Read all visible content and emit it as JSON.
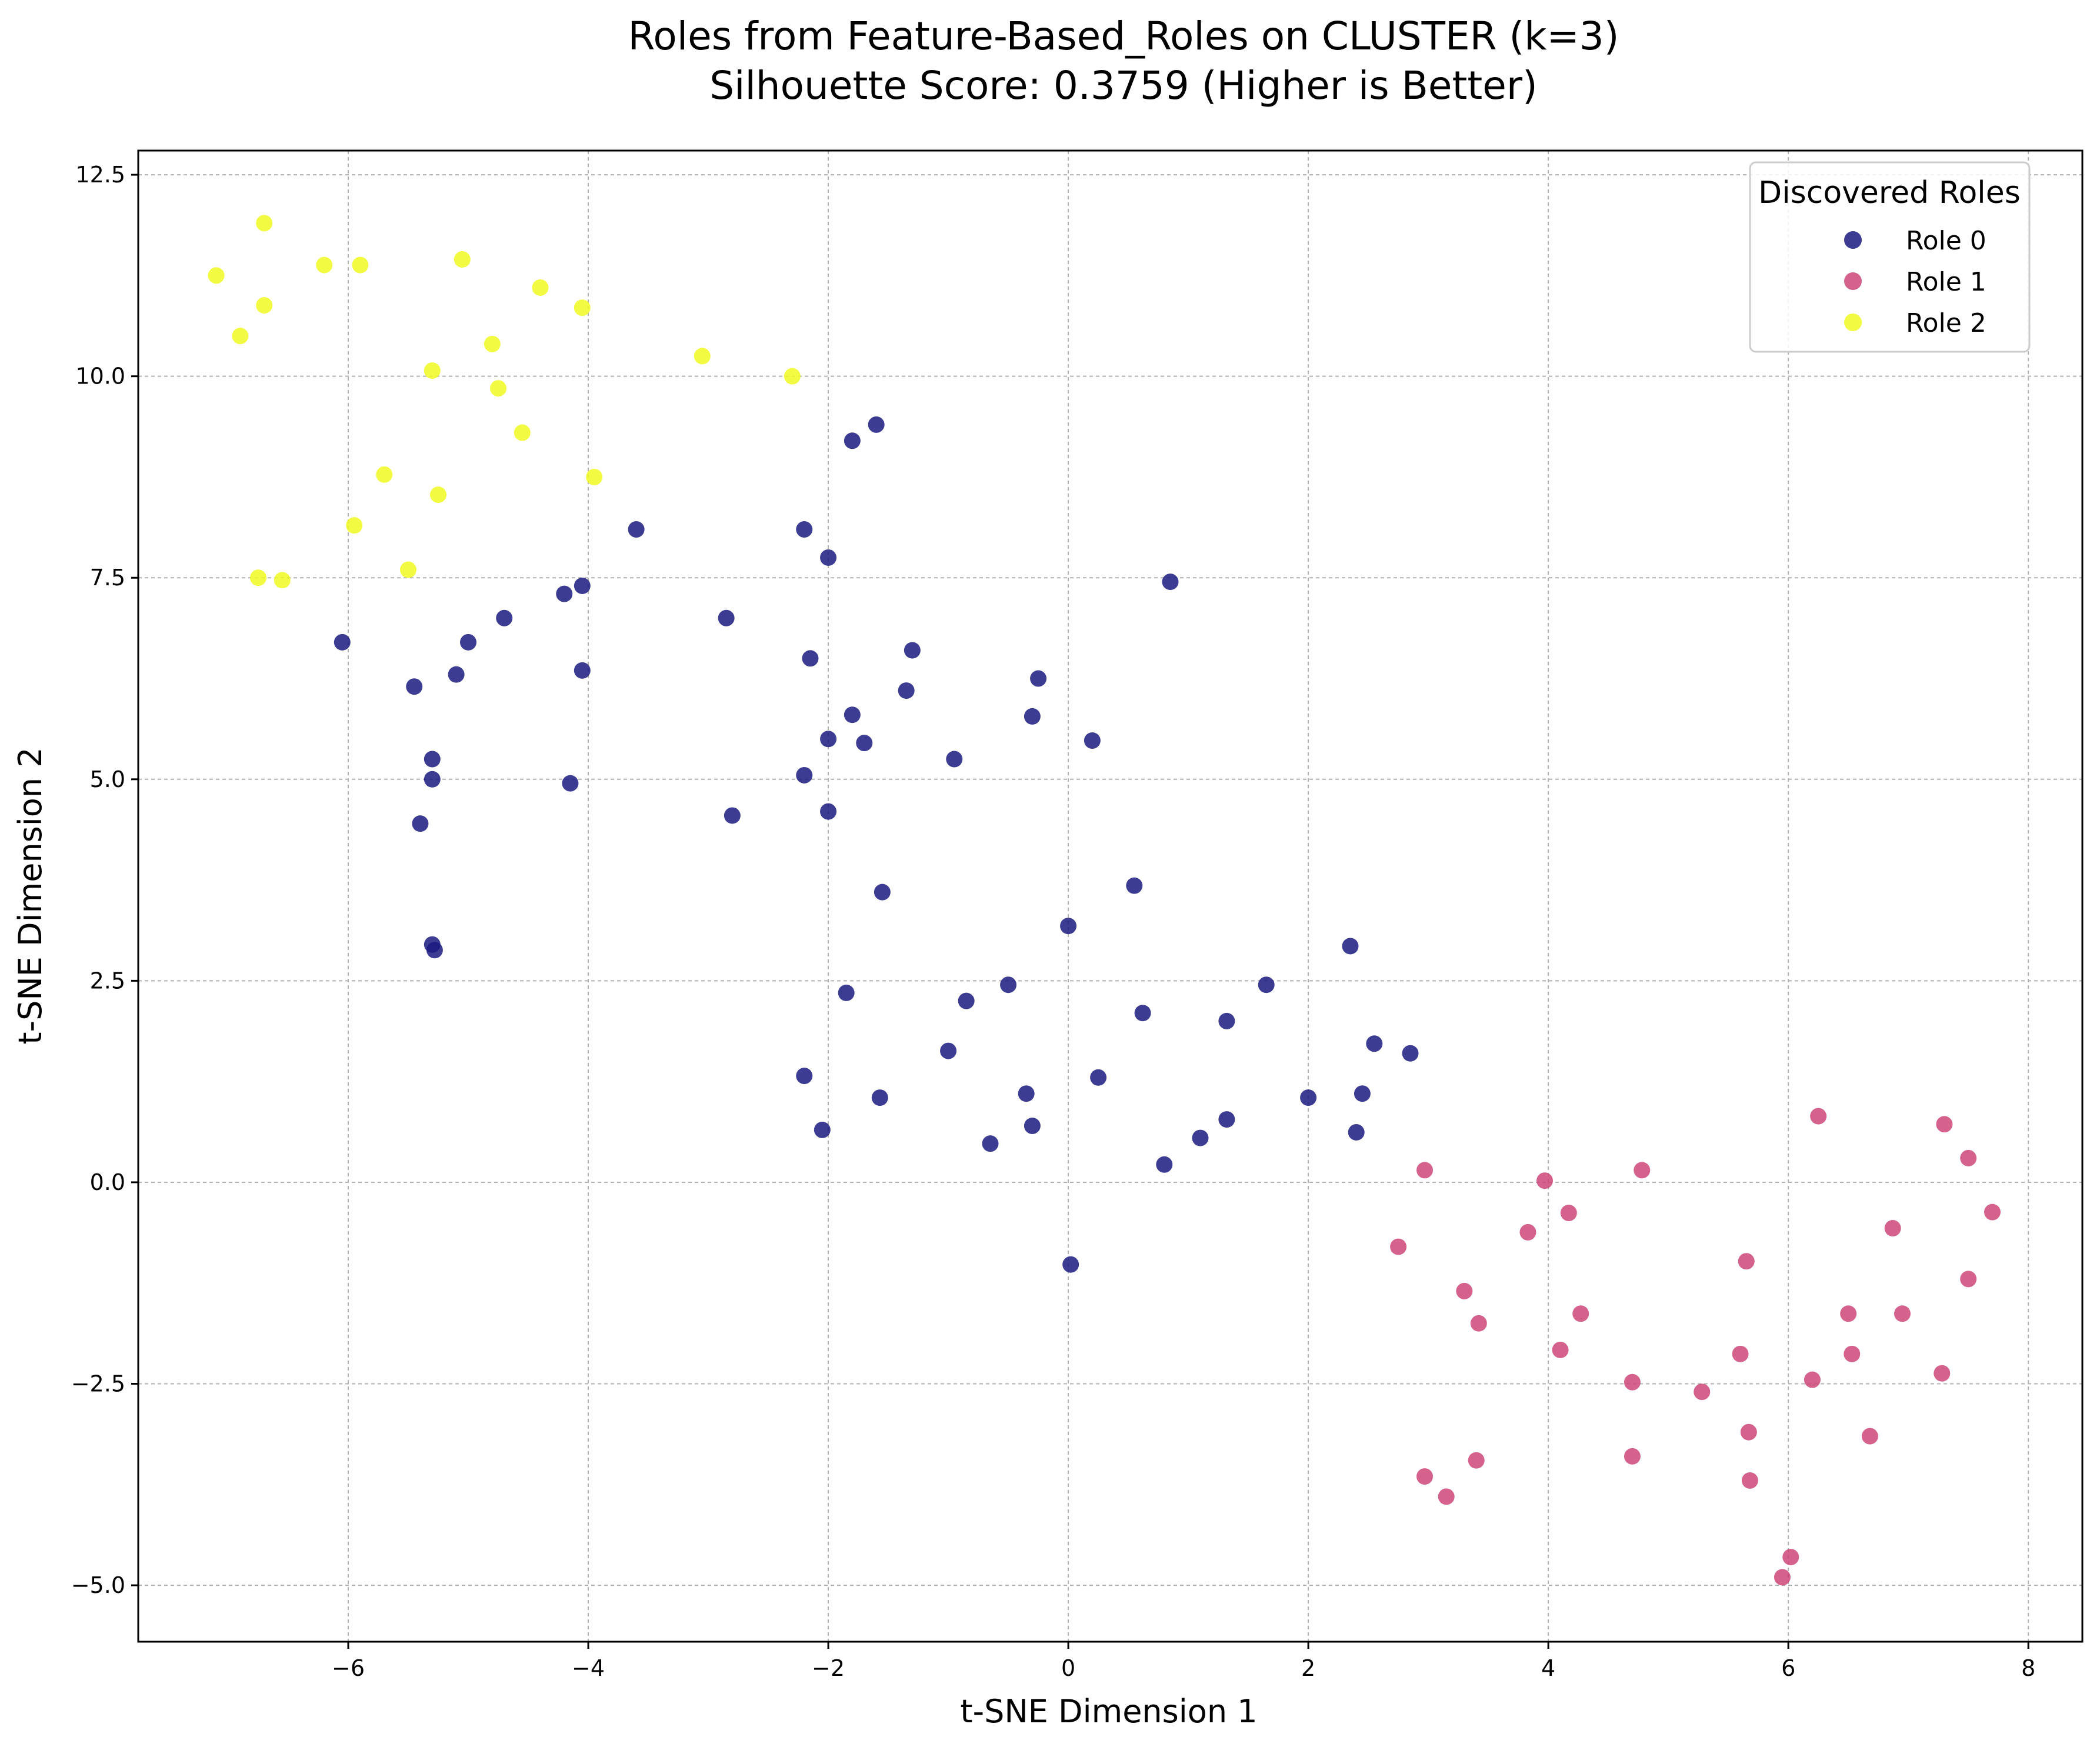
{
  "chart_data": {
    "type": "scatter",
    "title": "Roles from Feature-Based_Roles on CLUSTER (k=3)",
    "subtitle": "Silhouette Score: 0.3759 (Higher is Better)",
    "xlabel": "t-SNE Dimension 1",
    "ylabel": "t-SNE Dimension 2",
    "xlim": [
      -7.75,
      8.45
    ],
    "ylim": [
      -5.7,
      12.8
    ],
    "xticks": [
      -6,
      -4,
      -2,
      0,
      2,
      4,
      6,
      8
    ],
    "yticks": [
      -5.0,
      -2.5,
      0.0,
      2.5,
      5.0,
      7.5,
      10.0,
      12.5
    ],
    "xtick_labels": [
      "−6",
      "−4",
      "−2",
      "0",
      "2",
      "4",
      "6",
      "8"
    ],
    "ytick_labels": [
      "−5.0",
      "−2.5",
      "0.0",
      "2.5",
      "5.0",
      "7.5",
      "10.0",
      "12.5"
    ],
    "grid": true,
    "legend": {
      "title": "Discovered Roles",
      "placement": "top-right"
    },
    "series": [
      {
        "name": "Role 0",
        "color": "#1a1a80",
        "points": [
          [
            -1.6,
            9.4
          ],
          [
            -1.8,
            9.2
          ],
          [
            -3.6,
            8.1
          ],
          [
            -2.2,
            8.1
          ],
          [
            -2.0,
            7.75
          ],
          [
            0.85,
            7.45
          ],
          [
            -4.05,
            7.4
          ],
          [
            -4.2,
            7.3
          ],
          [
            -2.85,
            7.0
          ],
          [
            -4.7,
            7.0
          ],
          [
            -6.05,
            6.7
          ],
          [
            -5.0,
            6.7
          ],
          [
            -1.3,
            6.6
          ],
          [
            -2.15,
            6.5
          ],
          [
            -4.05,
            6.35
          ],
          [
            -5.1,
            6.3
          ],
          [
            -0.25,
            6.25
          ],
          [
            -5.45,
            6.15
          ],
          [
            -1.35,
            6.1
          ],
          [
            -1.8,
            5.8
          ],
          [
            -0.3,
            5.78
          ],
          [
            -2.0,
            5.5
          ],
          [
            0.2,
            5.48
          ],
          [
            -1.7,
            5.45
          ],
          [
            -5.3,
            5.25
          ],
          [
            -0.95,
            5.25
          ],
          [
            -2.2,
            5.05
          ],
          [
            -5.3,
            5.0
          ],
          [
            -4.15,
            4.95
          ],
          [
            -2.0,
            4.6
          ],
          [
            -2.8,
            4.55
          ],
          [
            -5.4,
            4.45
          ],
          [
            -1.55,
            3.6
          ],
          [
            0.55,
            3.68
          ],
          [
            0.0,
            3.18
          ],
          [
            -5.3,
            2.95
          ],
          [
            -5.28,
            2.88
          ],
          [
            2.35,
            2.93
          ],
          [
            -0.5,
            2.45
          ],
          [
            1.65,
            2.45
          ],
          [
            -1.85,
            2.35
          ],
          [
            -0.85,
            2.25
          ],
          [
            0.62,
            2.1
          ],
          [
            1.32,
            2.0
          ],
          [
            2.55,
            1.72
          ],
          [
            2.85,
            1.6
          ],
          [
            -1.0,
            1.63
          ],
          [
            -2.2,
            1.32
          ],
          [
            0.25,
            1.3
          ],
          [
            -0.35,
            1.1
          ],
          [
            2.45,
            1.1
          ],
          [
            -1.57,
            1.05
          ],
          [
            2.0,
            1.05
          ],
          [
            1.32,
            0.78
          ],
          [
            -0.3,
            0.7
          ],
          [
            -2.05,
            0.65
          ],
          [
            2.4,
            0.62
          ],
          [
            1.1,
            0.55
          ],
          [
            -0.65,
            0.48
          ],
          [
            0.8,
            0.22
          ],
          [
            0.02,
            -1.02
          ]
        ]
      },
      {
        "name": "Role 1",
        "color": "#cc4778",
        "points": [
          [
            6.25,
            0.82
          ],
          [
            7.3,
            0.72
          ],
          [
            7.5,
            0.3
          ],
          [
            2.97,
            0.15
          ],
          [
            4.78,
            0.15
          ],
          [
            3.97,
            0.02
          ],
          [
            4.17,
            -0.38
          ],
          [
            7.7,
            -0.37
          ],
          [
            6.87,
            -0.57
          ],
          [
            3.83,
            -0.62
          ],
          [
            2.75,
            -0.8
          ],
          [
            5.65,
            -0.98
          ],
          [
            7.5,
            -1.2
          ],
          [
            3.3,
            -1.35
          ],
          [
            4.27,
            -1.63
          ],
          [
            6.5,
            -1.63
          ],
          [
            6.95,
            -1.63
          ],
          [
            3.42,
            -1.75
          ],
          [
            4.1,
            -2.08
          ],
          [
            5.6,
            -2.13
          ],
          [
            6.53,
            -2.13
          ],
          [
            7.28,
            -2.37
          ],
          [
            6.2,
            -2.45
          ],
          [
            4.7,
            -2.48
          ],
          [
            5.28,
            -2.6
          ],
          [
            5.67,
            -3.1
          ],
          [
            6.68,
            -3.15
          ],
          [
            4.7,
            -3.4
          ],
          [
            3.4,
            -3.45
          ],
          [
            2.97,
            -3.65
          ],
          [
            5.68,
            -3.7
          ],
          [
            3.15,
            -3.9
          ],
          [
            6.02,
            -4.65
          ],
          [
            5.95,
            -4.9
          ]
        ]
      },
      {
        "name": "Role 2",
        "color": "#f0f921",
        "points": [
          [
            -6.7,
            11.9
          ],
          [
            -5.05,
            11.45
          ],
          [
            -6.2,
            11.38
          ],
          [
            -5.9,
            11.38
          ],
          [
            -7.1,
            11.25
          ],
          [
            -4.4,
            11.1
          ],
          [
            -6.7,
            10.88
          ],
          [
            -4.05,
            10.85
          ],
          [
            -6.9,
            10.5
          ],
          [
            -4.8,
            10.4
          ],
          [
            -3.05,
            10.25
          ],
          [
            -5.3,
            10.07
          ],
          [
            -2.3,
            10.0
          ],
          [
            -4.75,
            9.85
          ],
          [
            -4.55,
            9.3
          ],
          [
            -5.7,
            8.78
          ],
          [
            -3.95,
            8.75
          ],
          [
            -5.25,
            8.53
          ],
          [
            -5.95,
            8.15
          ],
          [
            -5.5,
            7.6
          ],
          [
            -6.75,
            7.5
          ],
          [
            -6.55,
            7.47
          ]
        ]
      }
    ]
  }
}
